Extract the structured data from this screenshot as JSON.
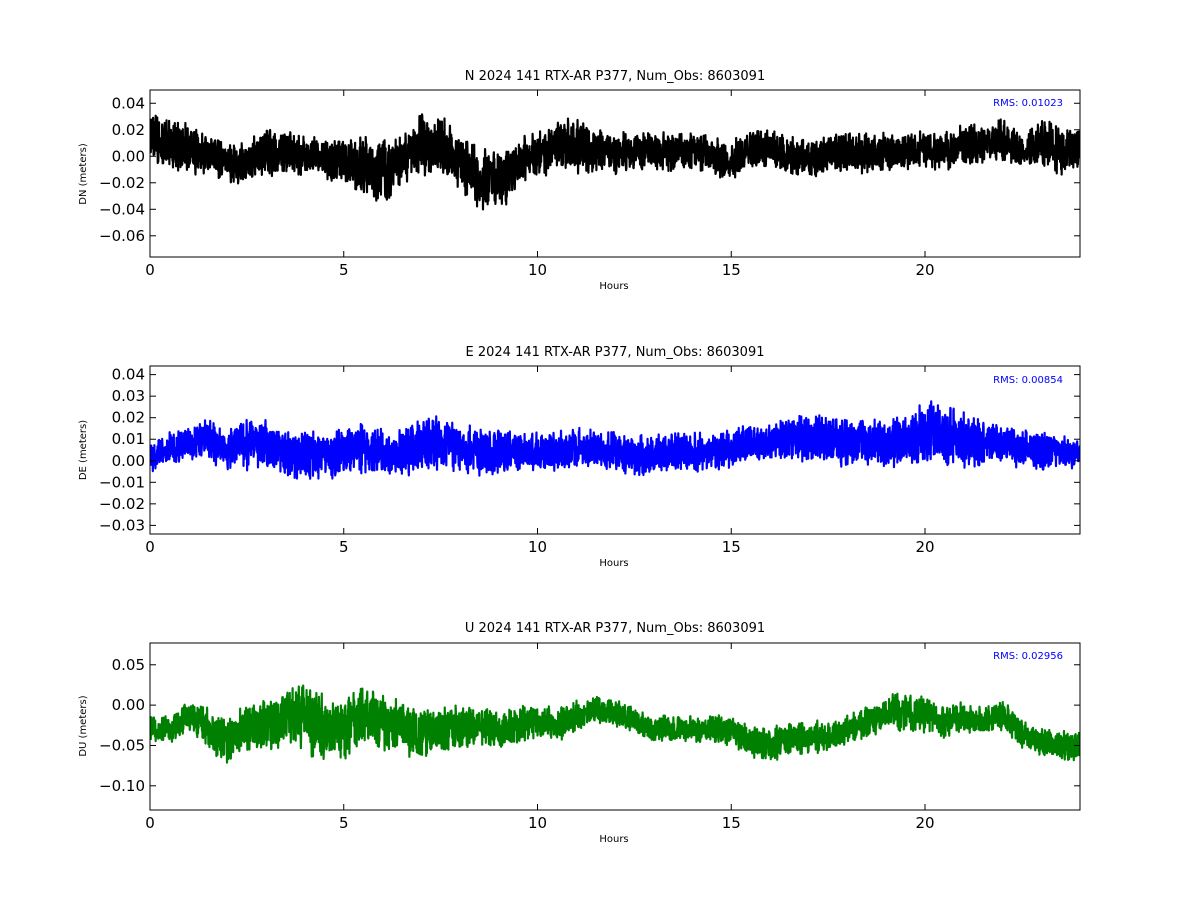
{
  "chart_data": [
    {
      "type": "line",
      "title": "N 2024 141 RTX-AR  P377, Num_Obs: 8603091",
      "xlabel": "Hours",
      "ylabel": "DN (meters)",
      "xlim": [
        0,
        24
      ],
      "ylim": [
        -0.076,
        0.05
      ],
      "x_ticks": [
        0,
        5,
        10,
        15,
        20
      ],
      "y_ticks": [
        -0.06,
        -0.04,
        -0.02,
        0.0,
        0.02,
        0.04
      ],
      "y_tick_labels": [
        "−0.06",
        "−0.04",
        "−0.02",
        "0.00",
        "0.02",
        "0.04"
      ],
      "grid": false,
      "annotation": "RMS:  0.01023",
      "color": "#000000",
      "series": [
        {
          "x": [
            0,
            0.5,
            1,
            1.5,
            2,
            2.5,
            3,
            3.5,
            4,
            4.5,
            5,
            5.5,
            6,
            6.5,
            7,
            7.5,
            8,
            8.5,
            9,
            9.5,
            10,
            10.5,
            11,
            11.5,
            12,
            12.5,
            13,
            13.5,
            14,
            14.5,
            15,
            15.5,
            16,
            16.5,
            17,
            17.5,
            18,
            18.5,
            19,
            19.5,
            20,
            20.5,
            21,
            21.5,
            22,
            22.5,
            23,
            23.5,
            24
          ],
          "y": [
            0.012,
            0.008,
            0.006,
            0.002,
            -0.006,
            -0.004,
            0.004,
            0.003,
            0.001,
            -0.002,
            -0.004,
            -0.008,
            -0.012,
            -0.004,
            0.01,
            0.008,
            -0.004,
            -0.018,
            -0.02,
            -0.006,
            0.004,
            0.008,
            0.01,
            0.004,
            0.002,
            0.004,
            0.004,
            0.002,
            0.004,
            0.0,
            -0.004,
            0.004,
            0.006,
            0.0,
            -0.002,
            0.002,
            0.004,
            0.002,
            0.004,
            0.004,
            0.006,
            0.004,
            0.008,
            0.01,
            0.012,
            0.004,
            0.01,
            0.004,
            0.006
          ],
          "band": [
            0.022,
            0.022,
            0.022,
            0.018,
            0.016,
            0.018,
            0.02,
            0.018,
            0.016,
            0.016,
            0.018,
            0.024,
            0.026,
            0.02,
            0.026,
            0.024,
            0.024,
            0.028,
            0.024,
            0.02,
            0.02,
            0.022,
            0.024,
            0.018,
            0.016,
            0.016,
            0.016,
            0.016,
            0.016,
            0.016,
            0.016,
            0.016,
            0.016,
            0.016,
            0.016,
            0.016,
            0.016,
            0.016,
            0.016,
            0.016,
            0.016,
            0.016,
            0.016,
            0.016,
            0.018,
            0.016,
            0.02,
            0.02,
            0.018
          ]
        }
      ]
    },
    {
      "type": "line",
      "title": "E 2024 141 RTX-AR  P377, Num_Obs: 8603091",
      "xlabel": "Hours",
      "ylabel": "DE (meters)",
      "xlim": [
        0,
        24
      ],
      "ylim": [
        -0.034,
        0.044
      ],
      "x_ticks": [
        0,
        5,
        10,
        15,
        20
      ],
      "y_ticks": [
        -0.03,
        -0.02,
        -0.01,
        0.0,
        0.01,
        0.02,
        0.03,
        0.04
      ],
      "y_tick_labels": [
        "−0.03",
        "−0.02",
        "−0.01",
        "0.00",
        "0.01",
        "0.02",
        "0.03",
        "0.04"
      ],
      "grid": false,
      "annotation": "RMS:  0.00854",
      "color": "#0000ff",
      "series": [
        {
          "x": [
            0,
            0.5,
            1,
            1.5,
            2,
            2.5,
            3,
            3.5,
            4,
            4.5,
            5,
            5.5,
            6,
            6.5,
            7,
            7.5,
            8,
            8.5,
            9,
            9.5,
            10,
            10.5,
            11,
            11.5,
            12,
            12.5,
            13,
            13.5,
            14,
            14.5,
            15,
            15.5,
            16,
            16.5,
            17,
            17.5,
            18,
            18.5,
            19,
            19.5,
            20,
            20.5,
            21,
            21.5,
            22,
            22.5,
            23,
            23.5,
            24
          ],
          "y": [
            0.002,
            0.006,
            0.008,
            0.01,
            0.004,
            0.008,
            0.008,
            0.004,
            0.002,
            0.002,
            0.004,
            0.006,
            0.004,
            0.004,
            0.006,
            0.008,
            0.006,
            0.004,
            0.004,
            0.004,
            0.004,
            0.004,
            0.006,
            0.006,
            0.004,
            0.002,
            0.002,
            0.004,
            0.004,
            0.004,
            0.006,
            0.008,
            0.008,
            0.01,
            0.01,
            0.01,
            0.008,
            0.008,
            0.008,
            0.01,
            0.012,
            0.012,
            0.01,
            0.008,
            0.008,
            0.006,
            0.004,
            0.004,
            0.004
          ],
          "band": [
            0.008,
            0.008,
            0.008,
            0.01,
            0.01,
            0.014,
            0.012,
            0.012,
            0.012,
            0.012,
            0.012,
            0.014,
            0.012,
            0.012,
            0.014,
            0.014,
            0.012,
            0.012,
            0.012,
            0.01,
            0.01,
            0.01,
            0.01,
            0.01,
            0.01,
            0.01,
            0.01,
            0.01,
            0.01,
            0.01,
            0.01,
            0.01,
            0.01,
            0.012,
            0.012,
            0.012,
            0.012,
            0.012,
            0.012,
            0.014,
            0.016,
            0.016,
            0.014,
            0.012,
            0.01,
            0.01,
            0.01,
            0.008,
            0.008
          ]
        }
      ]
    },
    {
      "type": "line",
      "title": "U 2024 141 RTX-AR  P377, Num_Obs: 8603091",
      "xlabel": "Hours",
      "ylabel": "DU (meters)",
      "xlim": [
        0,
        24
      ],
      "ylim": [
        -0.13,
        0.077
      ],
      "x_ticks": [
        0,
        5,
        10,
        15,
        20
      ],
      "y_ticks": [
        -0.1,
        -0.05,
        0.0,
        0.05
      ],
      "y_tick_labels": [
        "−0.10",
        "−0.05",
        "0.00",
        "0.05"
      ],
      "grid": false,
      "annotation": "RMS:  0.02956",
      "color": "#008000",
      "series": [
        {
          "x": [
            0,
            0.5,
            1,
            1.5,
            2,
            2.5,
            3,
            3.5,
            4,
            4.5,
            5,
            5.5,
            6,
            6.5,
            7,
            7.5,
            8,
            8.5,
            9,
            9.5,
            10,
            10.5,
            11,
            11.5,
            12,
            12.5,
            13,
            13.5,
            14,
            14.5,
            15,
            15.5,
            16,
            16.5,
            17,
            17.5,
            18,
            18.5,
            19,
            19.5,
            20,
            20.5,
            21,
            21.5,
            22,
            22.5,
            23,
            23.5,
            24
          ],
          "y": [
            -0.028,
            -0.03,
            -0.012,
            -0.03,
            -0.048,
            -0.03,
            -0.024,
            -0.012,
            -0.016,
            -0.028,
            -0.03,
            -0.016,
            -0.022,
            -0.03,
            -0.034,
            -0.03,
            -0.028,
            -0.026,
            -0.03,
            -0.024,
            -0.02,
            -0.026,
            -0.014,
            -0.004,
            -0.01,
            -0.02,
            -0.03,
            -0.03,
            -0.03,
            -0.03,
            -0.03,
            -0.044,
            -0.05,
            -0.042,
            -0.04,
            -0.04,
            -0.028,
            -0.022,
            -0.01,
            -0.008,
            -0.012,
            -0.02,
            -0.016,
            -0.02,
            -0.012,
            -0.036,
            -0.046,
            -0.05,
            -0.05
          ],
          "band": [
            0.018,
            0.018,
            0.022,
            0.028,
            0.034,
            0.032,
            0.036,
            0.04,
            0.046,
            0.044,
            0.044,
            0.048,
            0.04,
            0.034,
            0.034,
            0.032,
            0.028,
            0.026,
            0.026,
            0.026,
            0.024,
            0.022,
            0.02,
            0.018,
            0.018,
            0.018,
            0.018,
            0.018,
            0.018,
            0.02,
            0.02,
            0.022,
            0.024,
            0.024,
            0.022,
            0.022,
            0.02,
            0.022,
            0.024,
            0.026,
            0.024,
            0.022,
            0.02,
            0.02,
            0.022,
            0.02,
            0.02,
            0.02,
            0.02
          ]
        }
      ]
    }
  ]
}
